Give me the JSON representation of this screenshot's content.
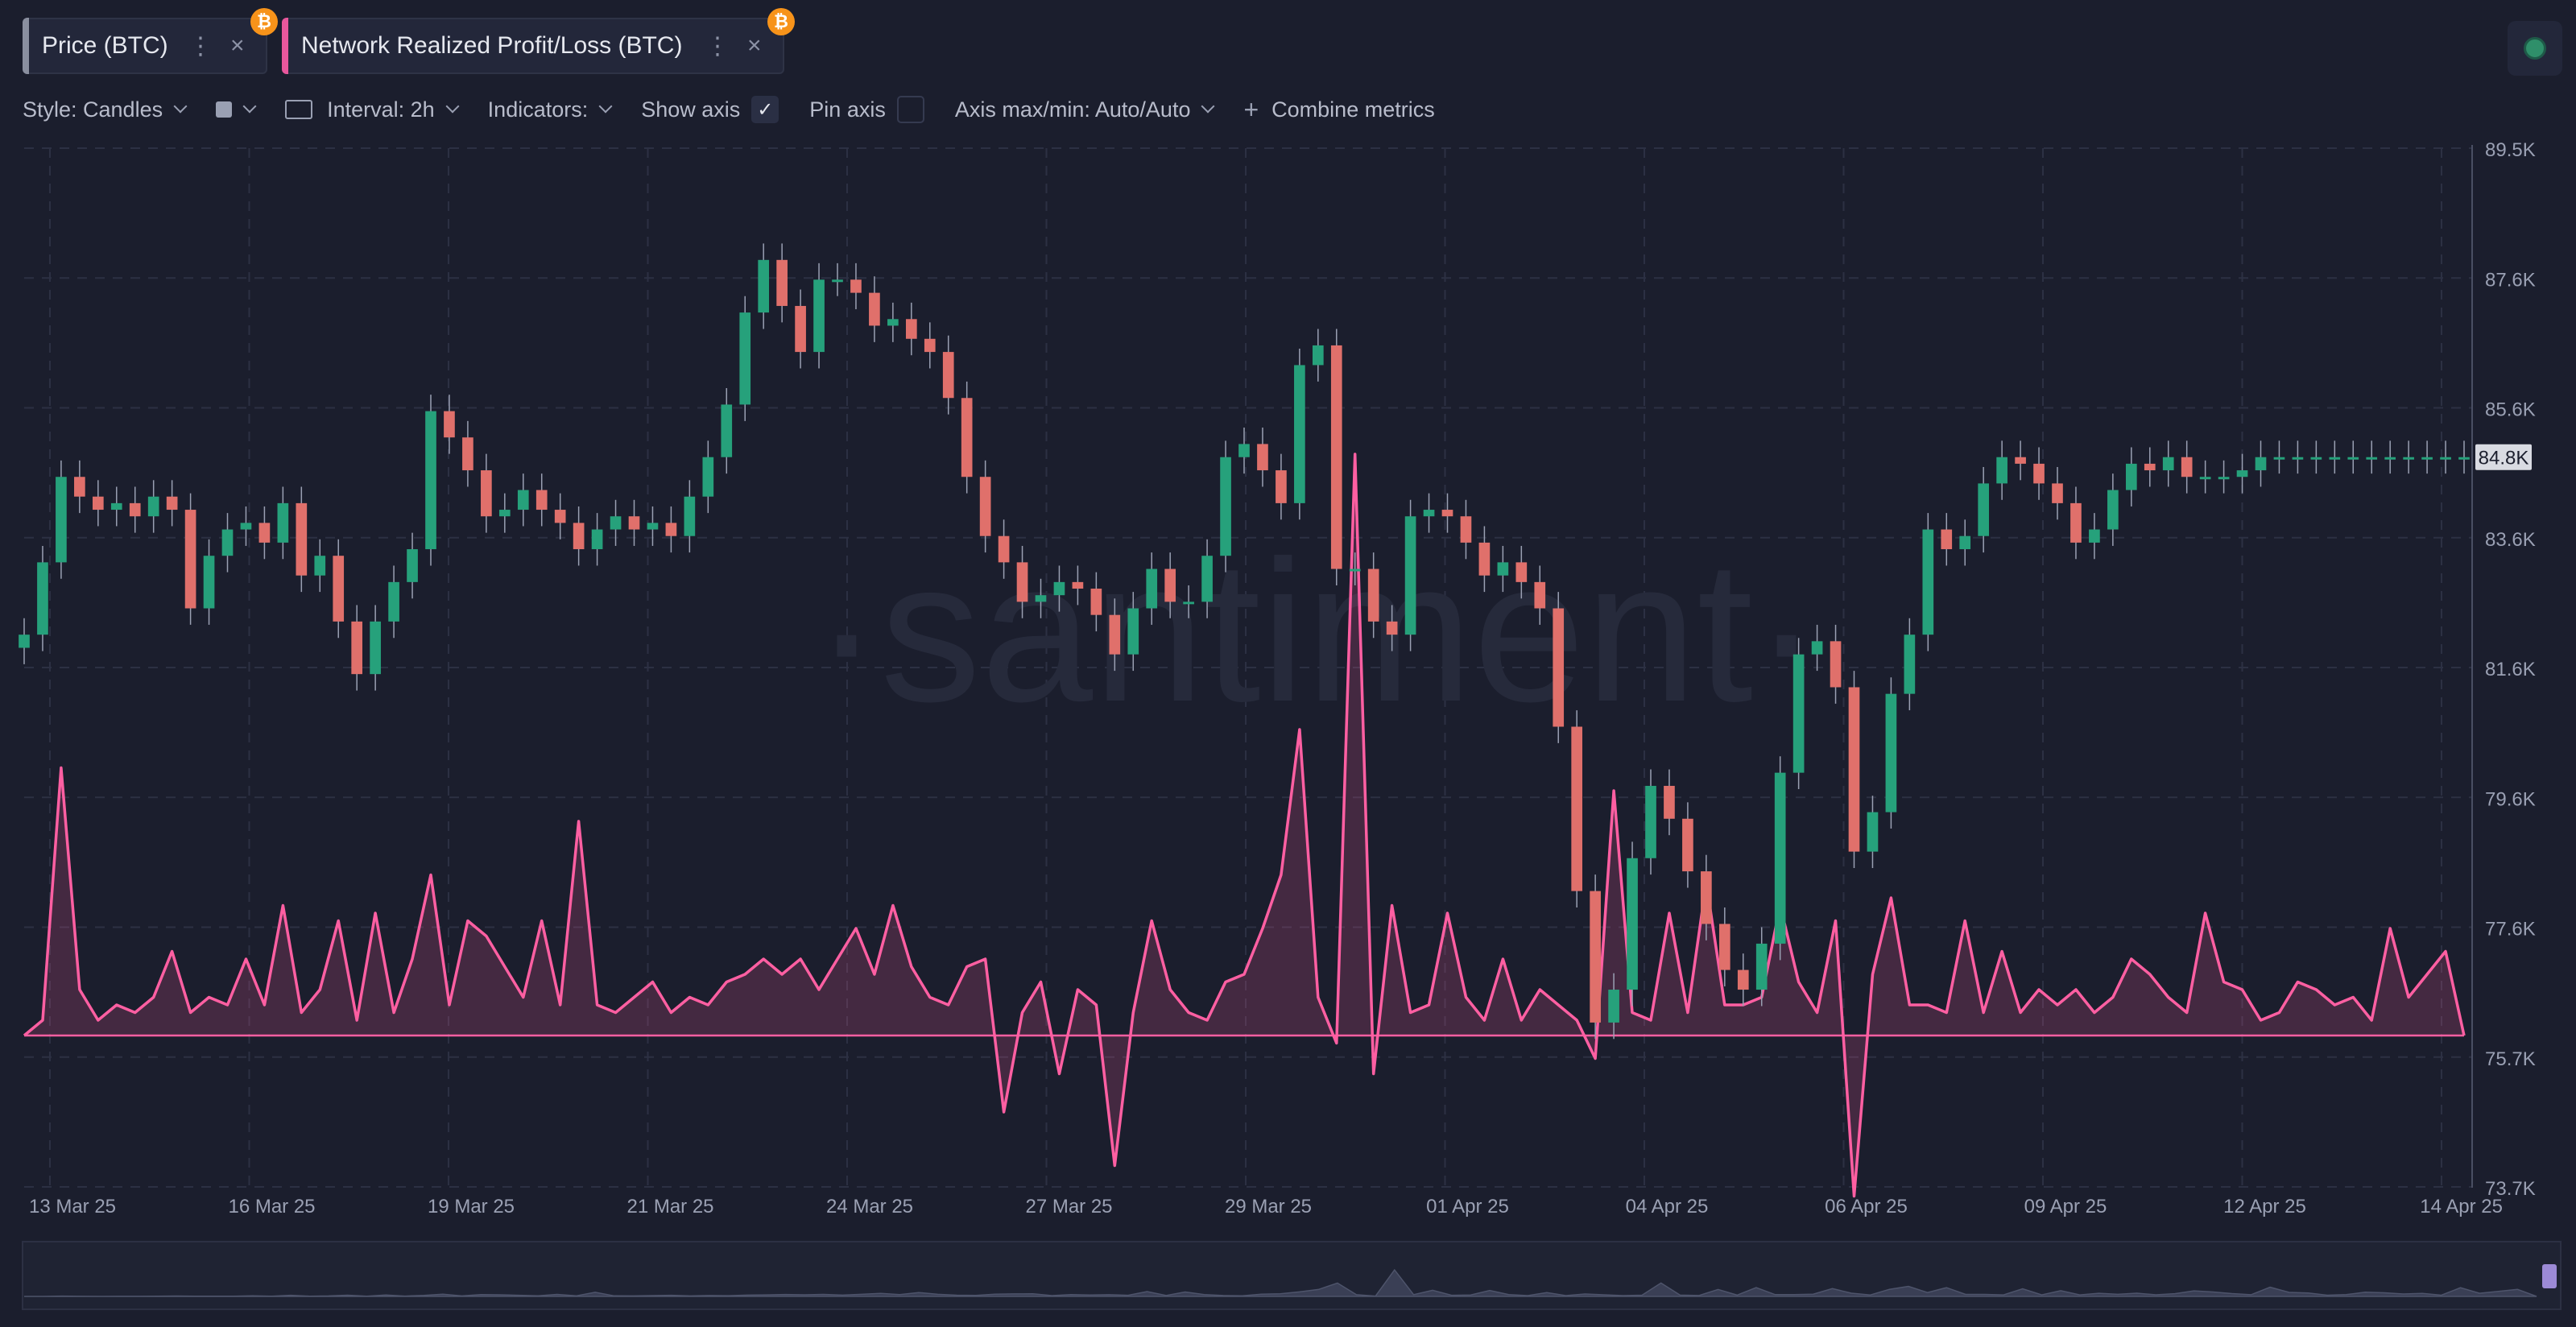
{
  "tabs": [
    {
      "label": "Price (BTC)",
      "badge": "₿",
      "accent": "#8a8f9f"
    },
    {
      "label": "Network Realized Profit/Loss (BTC)",
      "badge": "₿",
      "accent": "#e8579c"
    }
  ],
  "toolbar": {
    "style": "Style: Candles",
    "interval": "Interval: 2h",
    "indicators": "Indicators:",
    "show_axis": "Show axis",
    "show_axis_checked": "✓",
    "pin_axis": "Pin axis",
    "axis_maxmin": "Axis max/min: Auto/Auto",
    "combine_metrics": "Combine metrics"
  },
  "watermark": "·santiment·",
  "colors": {
    "up": "#26a17b",
    "down": "#e0706b",
    "pnl_line": "#ff5fa2",
    "background": "#1b1e2d"
  },
  "chart_data": {
    "type": "line",
    "title": "Price (BTC) / Network Realized Profit/Loss (BTC)",
    "x_tick_labels": [
      "13 Mar 25",
      "16 Mar 25",
      "19 Mar 25",
      "21 Mar 25",
      "24 Mar 25",
      "27 Mar 25",
      "29 Mar 25",
      "01 Apr 25",
      "04 Apr 25",
      "06 Apr 25",
      "09 Apr 25",
      "12 Apr 25",
      "14 Apr 25"
    ],
    "y_tick_labels": [
      "89.5K",
      "87.6K",
      "85.6K",
      "83.6K",
      "81.6K",
      "79.6K",
      "77.6K",
      "75.7K",
      "73.7K"
    ],
    "ylim": [
      73700,
      89500
    ],
    "current_price_label": "84.8K",
    "current_price": 84800,
    "price_series": {
      "name": "Price (BTC)",
      "style": "candles",
      "x": [
        0.0,
        0.25,
        0.5,
        0.75,
        1.0,
        1.25,
        1.5,
        1.75,
        2.0,
        2.25,
        2.5,
        2.75,
        3.0,
        3.25,
        3.5,
        3.75,
        4.0,
        4.25,
        4.5,
        4.75,
        5.0,
        5.25,
        5.5,
        5.75,
        6.0,
        6.25,
        6.5,
        6.75,
        7.0,
        7.25,
        7.5,
        7.75,
        8.0,
        8.25,
        8.5,
        8.75,
        9.0,
        9.25,
        9.5,
        9.75,
        10.0,
        10.25,
        10.5,
        10.75,
        11.0,
        11.25,
        11.5,
        11.75,
        12.0,
        12.25,
        12.5,
        12.75,
        13.0,
        13.25,
        13.5,
        13.75,
        14.0,
        14.25,
        14.5,
        14.75,
        15.0,
        15.25,
        15.5,
        15.75,
        16.0,
        16.25,
        16.5,
        16.75,
        17.0,
        17.25,
        17.5,
        17.75,
        18.0,
        18.25,
        18.5,
        18.75,
        19.0,
        19.25,
        19.5,
        19.75,
        20.0,
        20.25,
        20.5,
        20.75,
        21.0,
        21.25,
        21.5,
        21.75,
        22.0,
        22.25,
        22.5,
        22.75,
        23.0,
        23.25,
        23.5,
        23.75,
        24.0,
        24.25,
        24.5,
        24.75,
        25.0,
        25.25,
        25.5,
        25.75,
        26.0,
        26.25,
        26.5,
        26.75,
        27.0,
        27.25,
        27.5,
        27.75,
        28.0,
        28.25,
        28.5,
        28.75,
        29.0,
        29.25,
        29.5,
        29.75,
        30.0,
        30.25,
        30.5,
        30.75,
        31.0,
        31.25,
        31.5,
        31.75,
        32.0,
        32.25,
        32.5,
        32.75,
        33.0
      ],
      "values": [
        82100,
        83200,
        84500,
        84200,
        84000,
        84100,
        83900,
        84200,
        84000,
        82500,
        83300,
        83700,
        83800,
        83500,
        84100,
        83000,
        83300,
        82300,
        81500,
        82300,
        82900,
        83400,
        85500,
        85100,
        84600,
        83900,
        84000,
        84300,
        84000,
        83800,
        83400,
        83700,
        83900,
        83700,
        83800,
        83600,
        84200,
        84800,
        85600,
        87000,
        87800,
        87100,
        86400,
        87500,
        87500,
        87300,
        86800,
        86900,
        86600,
        86400,
        85700,
        84500,
        83600,
        83200,
        82600,
        82700,
        82900,
        82800,
        82400,
        81800,
        82500,
        83100,
        82600,
        82600,
        83300,
        84800,
        85000,
        84600,
        84100,
        86200,
        86500,
        83100,
        83100,
        82300,
        82100,
        83900,
        84000,
        83900,
        83500,
        83000,
        83200,
        82900,
        82500,
        80700,
        78200,
        76200,
        76700,
        78700,
        79800,
        79300,
        78500,
        77700,
        77000,
        76700,
        77400,
        80000,
        81800,
        82000,
        81300,
        78800,
        79400,
        81200,
        82100,
        83700,
        83400,
        83600,
        84400,
        84800,
        84700,
        84400,
        84100,
        83500,
        83700,
        84300,
        84700,
        84600,
        84800,
        84500,
        84500,
        84500,
        84600,
        84800,
        84800,
        84800,
        84800,
        84800,
        84800,
        84800,
        84800,
        84800,
        84800,
        84800,
        84800
      ]
    },
    "pnl_series": {
      "name": "Network Realized Profit/Loss (BTC)",
      "style": "area",
      "x": [
        0.0,
        0.25,
        0.5,
        0.75,
        1.0,
        1.25,
        1.5,
        1.75,
        2.0,
        2.25,
        2.5,
        2.75,
        3.0,
        3.25,
        3.5,
        3.75,
        4.0,
        4.25,
        4.5,
        4.75,
        5.0,
        5.25,
        5.5,
        5.75,
        6.0,
        6.25,
        6.5,
        6.75,
        7.0,
        7.25,
        7.5,
        7.75,
        8.0,
        8.25,
        8.5,
        8.75,
        9.0,
        9.25,
        9.5,
        9.75,
        10.0,
        10.25,
        10.5,
        10.75,
        11.0,
        11.25,
        11.5,
        11.75,
        12.0,
        12.25,
        12.5,
        12.75,
        13.0,
        13.25,
        13.5,
        13.75,
        14.0,
        14.25,
        14.5,
        14.75,
        15.0,
        15.25,
        15.5,
        15.75,
        16.0,
        16.25,
        16.5,
        16.75,
        17.0,
        17.25,
        17.5,
        17.75,
        18.0,
        18.25,
        18.5,
        18.75,
        19.0,
        19.25,
        19.5,
        19.75,
        20.0,
        20.25,
        20.5,
        20.75,
        21.0,
        21.25,
        21.5,
        21.75,
        22.0,
        22.25,
        22.5,
        22.75,
        23.0,
        23.25,
        23.5,
        23.75,
        24.0,
        24.25,
        24.5,
        24.75,
        25.0,
        25.25,
        25.5,
        25.75,
        26.0,
        26.25,
        26.5,
        26.75,
        27.0,
        27.25,
        27.5,
        27.75,
        28.0,
        28.25,
        28.5,
        28.75,
        29.0,
        29.25,
        29.5,
        29.75,
        30.0,
        30.25,
        30.5,
        30.75,
        31.0,
        31.25,
        31.5,
        31.75,
        32.0,
        32.25,
        32.5,
        32.75,
        33.0
      ],
      "values": [
        0,
        0.2,
        3.5,
        0.6,
        0.2,
        0.4,
        0.3,
        0.5,
        1.1,
        0.3,
        0.5,
        0.4,
        1.0,
        0.4,
        1.7,
        0.3,
        0.6,
        1.5,
        0.2,
        1.6,
        0.3,
        1.0,
        2.1,
        0.4,
        1.5,
        1.3,
        0.9,
        0.5,
        1.5,
        0.4,
        2.8,
        0.4,
        0.3,
        0.5,
        0.7,
        0.3,
        0.5,
        0.4,
        0.7,
        0.8,
        1.0,
        0.8,
        1.0,
        0.6,
        1.0,
        1.4,
        0.8,
        1.7,
        0.9,
        0.5,
        0.4,
        0.9,
        1.0,
        -1.0,
        0.3,
        0.7,
        -0.5,
        0.6,
        0.4,
        -1.7,
        0.3,
        1.5,
        0.6,
        0.3,
        0.2,
        0.7,
        0.8,
        1.4,
        2.1,
        4.0,
        0.5,
        -0.1,
        7.6,
        -0.5,
        1.7,
        0.3,
        0.4,
        1.6,
        0.5,
        0.2,
        1.0,
        0.2,
        0.6,
        0.4,
        0.2,
        -0.3,
        3.2,
        0.3,
        0.2,
        1.6,
        0.3,
        2.0,
        0.4,
        0.4,
        0.5,
        1.7,
        0.7,
        0.3,
        1.5,
        -2.1,
        0.8,
        1.8,
        0.4,
        0.4,
        0.3,
        1.5,
        0.3,
        1.1,
        0.3,
        0.6,
        0.4,
        0.6,
        0.3,
        0.5,
        1.0,
        0.8,
        0.5,
        0.3,
        1.6,
        0.7,
        0.6,
        0.2,
        0.3,
        0.7,
        0.6,
        0.4,
        0.5,
        0.2,
        1.4,
        0.5,
        0.8,
        1.1,
        0.0
      ],
      "baseline": 0
    },
    "grid": true,
    "legend": "top-left"
  }
}
